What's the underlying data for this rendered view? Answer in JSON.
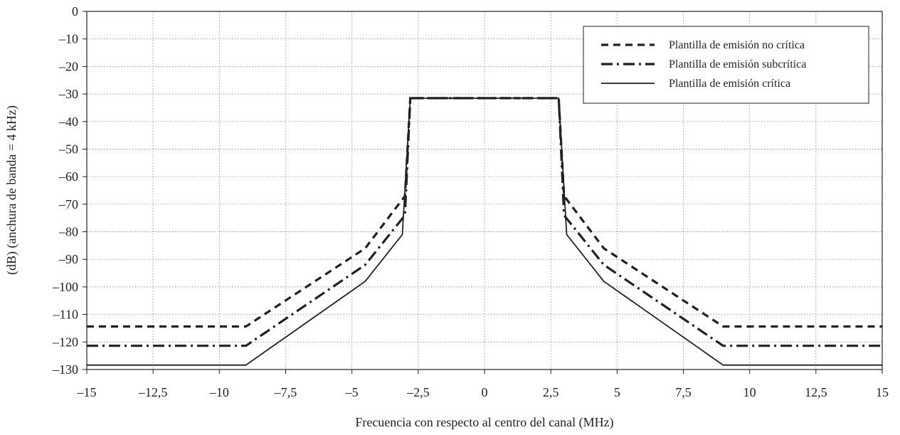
{
  "chart_data": {
    "type": "line",
    "title": "",
    "xlabel": "Frecuencia con respecto al centro del canal (MHz)",
    "ylabel": "(dB) (anchura de banda = 4 kHz)",
    "xlim": [
      -15,
      15
    ],
    "ylim": [
      -130,
      0
    ],
    "x_ticks": [
      -15,
      -12.5,
      -10,
      -7.5,
      -5,
      -2.5,
      0,
      2.5,
      5,
      7.5,
      10,
      12.5,
      15
    ],
    "x_tick_labels": [
      "–15",
      "–12,5",
      "–10",
      "–7,5",
      "–5",
      "–2,5",
      "0",
      "2,5",
      "5",
      "7,5",
      "10",
      "12,5",
      "15"
    ],
    "y_ticks": [
      0,
      -10,
      -20,
      -30,
      -40,
      -50,
      -60,
      -70,
      -80,
      -90,
      -100,
      -110,
      -120,
      -130
    ],
    "y_tick_labels": [
      "0",
      "–10",
      "–20",
      "–30",
      "–40",
      "–50",
      "–60",
      "–70",
      "–80",
      "–90",
      "–100",
      "–110",
      "–120",
      "–130"
    ],
    "grid": true,
    "legend_position": "top-right",
    "series": [
      {
        "name": "Plantilla de emisión no crítica",
        "style": "dashed",
        "color": "#222222",
        "points": [
          [
            -15,
            -114.4
          ],
          [
            -9,
            -114.4
          ],
          [
            -4.5,
            -86
          ],
          [
            -3,
            -67
          ],
          [
            -2.8,
            -31.5
          ],
          [
            2.8,
            -31.5
          ],
          [
            3,
            -67
          ],
          [
            4.5,
            -86
          ],
          [
            9,
            -114.4
          ],
          [
            15,
            -114.4
          ]
        ]
      },
      {
        "name": "Plantilla de emisión subcrítica",
        "style": "dash-dot",
        "color": "#222222",
        "points": [
          [
            -15,
            -121.4
          ],
          [
            -9,
            -121.4
          ],
          [
            -4.5,
            -92
          ],
          [
            -3,
            -74
          ],
          [
            -2.8,
            -31.5
          ],
          [
            2.8,
            -31.5
          ],
          [
            3,
            -74
          ],
          [
            4.5,
            -92
          ],
          [
            9,
            -121.4
          ],
          [
            15,
            -121.4
          ]
        ]
      },
      {
        "name": "Plantilla de emisión crítica",
        "style": "solid",
        "color": "#222222",
        "points": [
          [
            -15,
            -128.4
          ],
          [
            -9,
            -128.4
          ],
          [
            -4.5,
            -98
          ],
          [
            -3.1,
            -81
          ],
          [
            -2.8,
            -31.5
          ],
          [
            2.8,
            -31.5
          ],
          [
            3.1,
            -81
          ],
          [
            4.5,
            -98
          ],
          [
            9,
            -128.4
          ],
          [
            15,
            -128.4
          ]
        ]
      }
    ]
  }
}
